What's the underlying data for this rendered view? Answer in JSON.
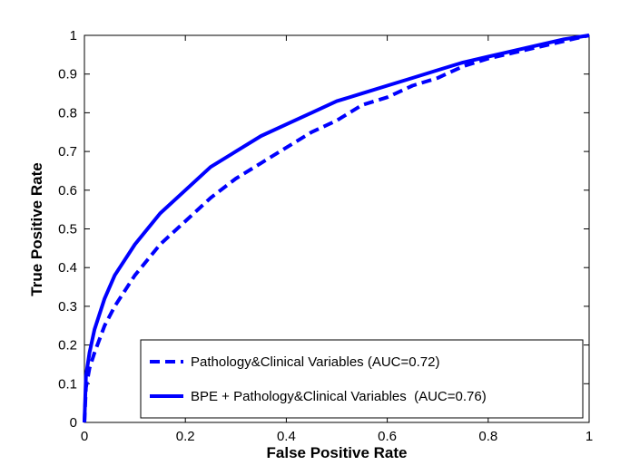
{
  "chart_data": {
    "type": "line",
    "title": "",
    "xlabel": "False Positive Rate",
    "ylabel": "True Positive Rate",
    "xlim": [
      0,
      1
    ],
    "ylim": [
      0,
      1
    ],
    "xticks": [
      "0",
      "0.2",
      "0.4",
      "0.6",
      "0.8",
      "1"
    ],
    "yticks": [
      "0",
      "0.1",
      "0.2",
      "0.3",
      "0.4",
      "0.5",
      "0.6",
      "0.7",
      "0.8",
      "0.9",
      "1"
    ],
    "grid": false,
    "legend_position": "bottom-right",
    "series": [
      {
        "name": "Pathology&Clinical Variables (AUC=0.72)",
        "style": "dashed",
        "color": "#0000ff",
        "x": [
          0,
          0.003,
          0.01,
          0.02,
          0.04,
          0.06,
          0.08,
          0.1,
          0.15,
          0.2,
          0.25,
          0.3,
          0.35,
          0.4,
          0.45,
          0.5,
          0.55,
          0.6,
          0.65,
          0.7,
          0.75,
          0.8,
          0.85,
          0.9,
          0.95,
          1
        ],
        "y": [
          0,
          0.09,
          0.14,
          0.18,
          0.25,
          0.3,
          0.34,
          0.38,
          0.46,
          0.52,
          0.58,
          0.63,
          0.67,
          0.71,
          0.75,
          0.78,
          0.82,
          0.84,
          0.87,
          0.89,
          0.92,
          0.94,
          0.955,
          0.97,
          0.985,
          1
        ]
      },
      {
        "name": "BPE + Pathology&Clinical Variables  (AUC=0.76)",
        "style": "solid",
        "color": "#0000ff",
        "x": [
          0,
          0.003,
          0.01,
          0.02,
          0.04,
          0.06,
          0.08,
          0.1,
          0.15,
          0.2,
          0.25,
          0.3,
          0.35,
          0.4,
          0.45,
          0.5,
          0.55,
          0.6,
          0.65,
          0.7,
          0.75,
          0.8,
          0.85,
          0.9,
          0.95,
          1
        ],
        "y": [
          0,
          0.12,
          0.18,
          0.24,
          0.32,
          0.38,
          0.42,
          0.46,
          0.54,
          0.6,
          0.66,
          0.7,
          0.74,
          0.77,
          0.8,
          0.83,
          0.85,
          0.87,
          0.89,
          0.91,
          0.93,
          0.945,
          0.96,
          0.975,
          0.99,
          1
        ]
      }
    ]
  }
}
